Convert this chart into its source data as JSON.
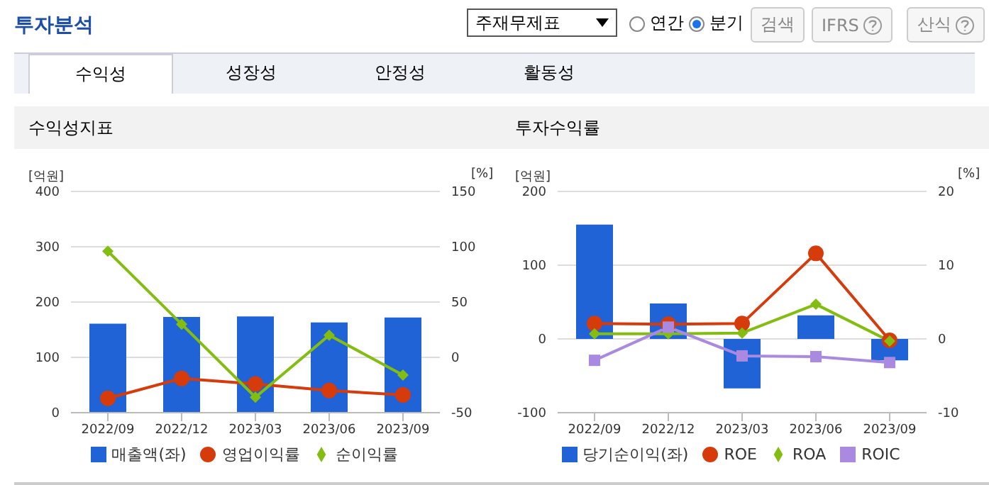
{
  "chart_data": [
    {
      "type": "other",
      "title": "투자분석",
      "annotations": [
        "주재무제표",
        "연간",
        "분기",
        "검색",
        "IFRS",
        "산식",
        "수익성",
        "성장성",
        "안정성",
        "활동성"
      ]
    },
    {
      "type": "bar",
      "title": "수익성지표",
      "ylabel": "[억원]",
      "y2label": "[%]",
      "categories": [
        "2022/09",
        "2022/12",
        "2023/03",
        "2023/06",
        "2023/09"
      ],
      "ylim": [
        0,
        400
      ],
      "yticks": [
        0,
        100,
        200,
        300,
        400
      ],
      "y2lim": [
        -50,
        150
      ],
      "y2ticks": [
        -50,
        0,
        50,
        100,
        150
      ],
      "grid": "y",
      "legend": "bottom",
      "series": [
        {
          "name": "매출액(좌)",
          "type": "bar",
          "color": "#1f63d6",
          "values": [
            161,
            173,
            174,
            163,
            172
          ]
        },
        {
          "name": "영업이익률",
          "type": "line",
          "axis": "y2",
          "marker": "circle",
          "color": "#d63b0c",
          "values": [
            -37,
            -19,
            -24,
            -30,
            -34
          ]
        },
        {
          "name": "순이익률",
          "type": "line",
          "axis": "y2",
          "marker": "diamond",
          "color": "#84bd11",
          "values": [
            96,
            30,
            -36,
            20,
            -16
          ]
        }
      ]
    },
    {
      "type": "bar",
      "title": "투자수익률",
      "ylabel": "[억원]",
      "y2label": "[%]",
      "categories": [
        "2022/09",
        "2022/12",
        "2023/03",
        "2023/06",
        "2023/09"
      ],
      "ylim": [
        -100,
        200
      ],
      "yticks": [
        -100,
        0,
        100,
        200
      ],
      "y2lim": [
        -10,
        20
      ],
      "y2ticks": [
        -10,
        0,
        10,
        20
      ],
      "grid": "y",
      "legend": "bottom",
      "series": [
        {
          "name": "당기순이익(좌)",
          "type": "bar",
          "color": "#1f63d6",
          "values": [
            155,
            48,
            -67,
            32,
            -29
          ]
        },
        {
          "name": "ROE",
          "type": "line",
          "axis": "y2",
          "marker": "circle",
          "color": "#d63b0c",
          "values": [
            2.1,
            2.0,
            2.1,
            11.6,
            -0.2
          ]
        },
        {
          "name": "ROA",
          "type": "line",
          "axis": "y2",
          "marker": "diamond",
          "color": "#84bd11",
          "values": [
            0.7,
            0.7,
            0.8,
            4.7,
            -0.3
          ]
        },
        {
          "name": "ROIC",
          "type": "line",
          "axis": "y2",
          "marker": "square",
          "color": "#a98ae0",
          "values": [
            -2.9,
            1.6,
            -2.3,
            -2.4,
            -3.2
          ]
        }
      ]
    }
  ]
}
